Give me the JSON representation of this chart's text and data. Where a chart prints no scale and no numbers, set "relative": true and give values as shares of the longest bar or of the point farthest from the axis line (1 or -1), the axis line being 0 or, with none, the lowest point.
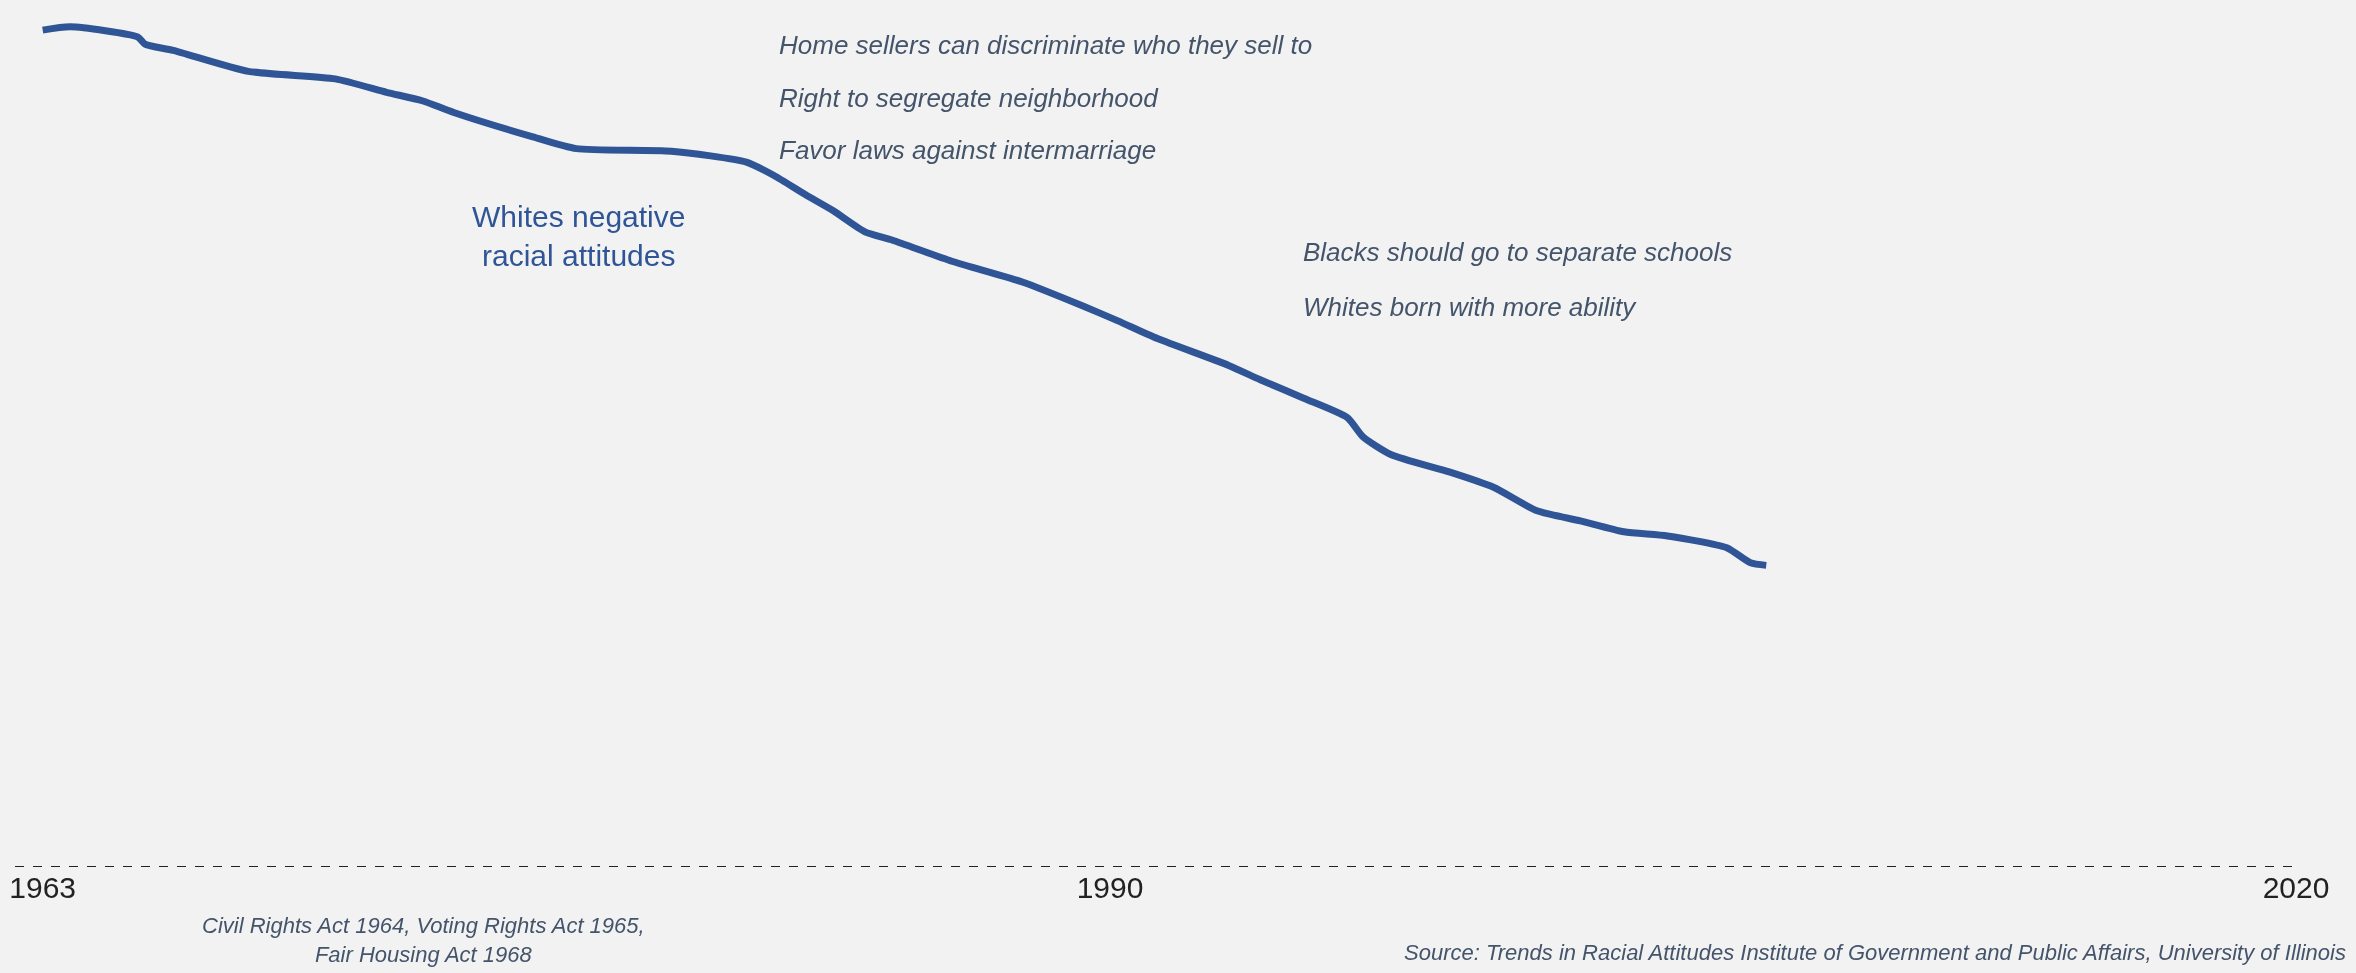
{
  "chart_data": {
    "type": "line",
    "relative": true,
    "tick_labels": "x",
    "xlim": [
      1962.3,
      2020
    ],
    "xticks": [
      1963,
      1990,
      2020
    ],
    "series": [
      {
        "name": "Whites negative racial attitudes",
        "color": "#2f5597",
        "x": [
          1963.0,
          1963.7,
          1965.4,
          1965.6,
          1966.3,
          1968.2,
          1970.4,
          1971.7,
          1972.6,
          1973.4,
          1975.4,
          1976.5,
          1978.9,
          1980.8,
          1981.5,
          1982.3,
          1983.0,
          1983.8,
          1984.5,
          1986.0,
          1987.8,
          1989.3,
          1990.2,
          1991.2,
          1993.0,
          1993.8,
          1994.9,
          1996.0,
          1996.4,
          1997.1,
          1998.6,
          1999.7,
          2000.8,
          2001.9,
          2003.0,
          2004.1,
          2005.6,
          2006.2,
          2006.6
        ],
        "values": [
          0.996,
          1,
          0.988,
          0.979,
          0.972,
          0.947,
          0.938,
          0.922,
          0.912,
          0.898,
          0.869,
          0.855,
          0.852,
          0.839,
          0.823,
          0.8,
          0.781,
          0.756,
          0.746,
          0.721,
          0.696,
          0.668,
          0.65,
          0.629,
          0.597,
          0.58,
          0.558,
          0.535,
          0.512,
          0.491,
          0.47,
          0.452,
          0.424,
          0.412,
          0.399,
          0.394,
          0.38,
          0.362,
          0.359
        ]
      }
    ],
    "annotations": [
      "Home sellers can discriminate who they sell to",
      "Right to segregate neighborhood",
      "Favor laws against intermarriage",
      "Blacks should go to separate schools",
      "Whites born with more ability",
      "Civil Rights Act 1964, Voting Rights Act 1965,\nFair Housing Act 1968",
      "Source: Trends in Racial Attitudes Institute of Government and Public Affairs, University of Illinois"
    ]
  }
}
